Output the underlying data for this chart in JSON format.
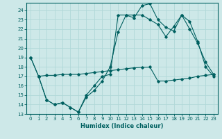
{
  "xlabel": "Humidex (Indice chaleur)",
  "background_color": "#cde8e8",
  "grid_color": "#b0d8d8",
  "line_color": "#006060",
  "xlim": [
    -0.5,
    23.5
  ],
  "ylim": [
    13,
    24.8
  ],
  "yticks": [
    13,
    14,
    15,
    16,
    17,
    18,
    19,
    20,
    21,
    22,
    23,
    24
  ],
  "xticks": [
    0,
    1,
    2,
    3,
    4,
    5,
    6,
    7,
    8,
    9,
    10,
    11,
    12,
    13,
    14,
    15,
    16,
    17,
    18,
    19,
    20,
    21,
    22,
    23
  ],
  "line1_x": [
    0,
    1,
    2,
    3,
    4,
    5,
    6,
    7,
    8,
    9,
    10,
    11,
    12,
    13,
    14,
    15,
    16,
    17,
    18,
    19,
    20,
    21,
    22,
    23
  ],
  "line1_y": [
    19,
    17,
    14.5,
    14,
    14.2,
    13.7,
    13.2,
    15.0,
    16.0,
    17.0,
    17.2,
    23.5,
    23.5,
    23.2,
    24.5,
    24.7,
    23.0,
    22.2,
    21.8,
    23.5,
    22.8,
    20.7,
    18.0,
    17.0
  ],
  "line2_x": [
    0,
    1,
    2,
    3,
    4,
    5,
    6,
    7,
    8,
    9,
    10,
    11,
    12,
    13,
    14,
    15,
    16,
    17,
    18,
    19,
    20,
    21,
    22,
    23
  ],
  "line2_y": [
    19,
    17,
    14.5,
    14,
    14.2,
    13.7,
    13.2,
    14.8,
    15.5,
    16.5,
    18.0,
    21.7,
    23.5,
    23.5,
    23.5,
    23.0,
    22.5,
    21.2,
    22.3,
    23.5,
    22.0,
    20.5,
    18.5,
    17.2
  ],
  "line3_x": [
    1,
    2,
    3,
    4,
    5,
    6,
    7,
    8,
    9,
    10,
    11,
    12,
    13,
    14,
    15,
    16,
    17,
    18,
    19,
    20,
    21,
    22,
    23
  ],
  "line3_y": [
    17.0,
    17.1,
    17.1,
    17.2,
    17.2,
    17.2,
    17.3,
    17.4,
    17.5,
    17.6,
    17.7,
    17.8,
    17.9,
    17.95,
    17.98,
    16.5,
    16.5,
    16.6,
    16.7,
    16.8,
    17.0,
    17.1,
    17.2
  ]
}
